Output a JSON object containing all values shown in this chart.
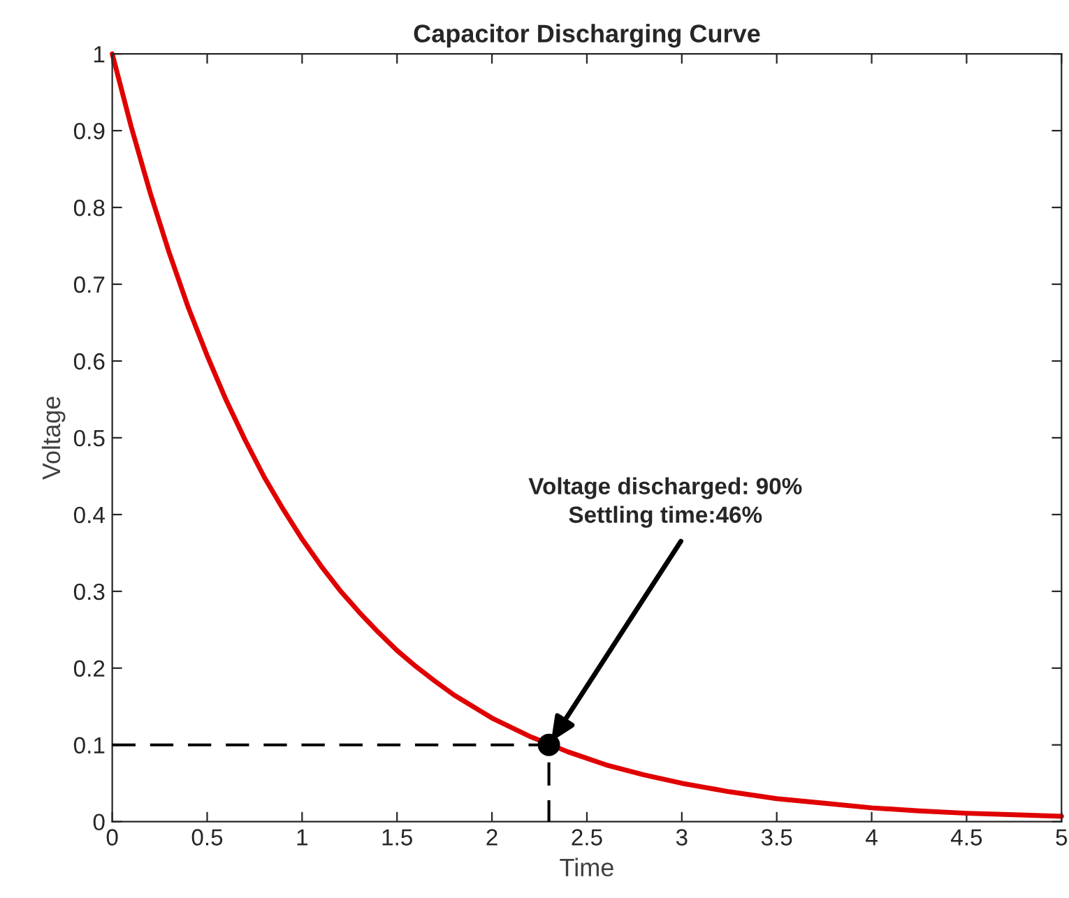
{
  "chart_data": {
    "type": "line",
    "title": "Capacitor Discharging Curve",
    "xlabel": "Time",
    "ylabel": "Voltage",
    "series": [
      {
        "color": "#e00000",
        "x": [
          0,
          0.1,
          0.2,
          0.3,
          0.4,
          0.5,
          0.6,
          0.7,
          0.8,
          0.9,
          1.0,
          1.1,
          1.2,
          1.3,
          1.4,
          1.5,
          1.6,
          1.7,
          1.8,
          1.9,
          2.0,
          2.2,
          2.4,
          2.6,
          2.8,
          3.0,
          3.25,
          3.5,
          3.75,
          4.0,
          4.25,
          4.5,
          4.75,
          5.0
        ],
        "values": [
          1,
          0.905,
          0.819,
          0.741,
          0.67,
          0.607,
          0.549,
          0.497,
          0.449,
          0.407,
          0.368,
          0.333,
          0.301,
          0.273,
          0.247,
          0.223,
          0.202,
          0.183,
          0.165,
          0.15,
          0.135,
          0.111,
          0.091,
          0.074,
          0.061,
          0.05,
          0.039,
          0.03,
          0.024,
          0.018,
          0.014,
          0.011,
          0.009,
          0.007
        ]
      },
      {
        "color": "#000000",
        "line_style": "dashed",
        "x": [
          0,
          2.3,
          2.3
        ],
        "values": [
          0.1,
          0.1,
          0
        ]
      },
      {
        "type": "scatter",
        "color": "#000000",
        "marker": "circle",
        "x": [
          2.3
        ],
        "values": [
          0.1
        ]
      }
    ],
    "annotations": [
      {
        "text": "Voltage discharged: 90%\nSettling time:46%",
        "x": 2.3,
        "y": 0.1
      }
    ],
    "xlim": [
      0,
      5
    ],
    "ylim": [
      0,
      1
    ],
    "xticks": [
      0,
      0.5,
      1,
      1.5,
      2,
      2.5,
      3,
      3.5,
      4,
      4.5,
      5
    ],
    "yticks": [
      0,
      0.1,
      0.2,
      0.3,
      0.4,
      0.5,
      0.6,
      0.7,
      0.8,
      0.9,
      1
    ],
    "grid": false,
    "legend": false
  }
}
